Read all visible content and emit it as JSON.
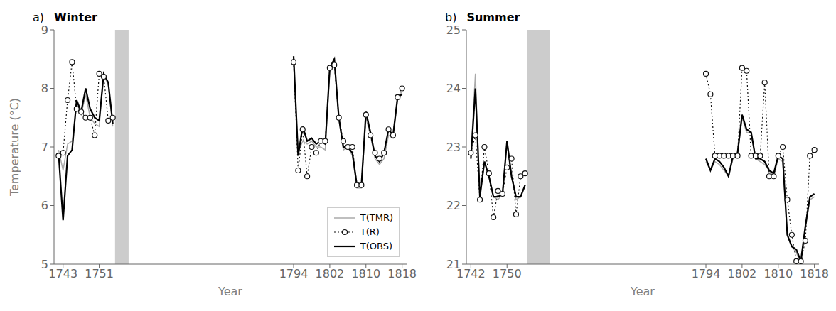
{
  "chart_data": [
    {
      "type": "line",
      "title": "Winter",
      "annotations": [
        "a)"
      ],
      "xlabel": "Year",
      "ylabel": "Temperature (°C)",
      "x": [
        1742,
        1743,
        1744,
        1745,
        1746,
        1747,
        1748,
        1749,
        1750,
        1751,
        1752,
        1753,
        1754,
        null,
        1794,
        1795,
        1796,
        1797,
        1798,
        1799,
        1800,
        1801,
        1802,
        1803,
        1804,
        1805,
        1806,
        1807,
        1808,
        1809,
        1810,
        1811,
        1812,
        1813,
        1814,
        1815,
        1816,
        1817,
        1818
      ],
      "series": [
        {
          "name": "T(TMR)",
          "color": "#aaaaaa",
          "line_style": "solid",
          "values": [
            6.95,
            6.6,
            7.05,
            7.1,
            7.7,
            7.55,
            7.9,
            7.5,
            7.4,
            7.35,
            8.25,
            8.05,
            7.35,
            null,
            8.4,
            6.9,
            7.1,
            7.05,
            7.1,
            7.0,
            7.0,
            6.95,
            8.3,
            8.45,
            7.5,
            6.95,
            7.0,
            6.85,
            6.3,
            6.3,
            7.5,
            7.2,
            6.8,
            6.7,
            6.8,
            7.2,
            7.15,
            7.8,
            7.95
          ]
        },
        {
          "name": "T(R)",
          "color": "#111111",
          "line_style": "dotted",
          "marker": "circle",
          "values": [
            6.85,
            6.9,
            7.8,
            8.45,
            7.65,
            7.6,
            7.5,
            7.5,
            7.2,
            8.25,
            8.2,
            7.45,
            7.5,
            null,
            8.45,
            6.6,
            7.3,
            6.5,
            7.0,
            6.9,
            7.1,
            7.1,
            8.35,
            8.4,
            7.5,
            7.1,
            7.0,
            7.0,
            6.35,
            6.35,
            7.55,
            7.2,
            6.9,
            6.8,
            6.9,
            7.3,
            7.2,
            7.85,
            8.0
          ]
        },
        {
          "name": "T(OBS)",
          "color": "#000000",
          "line_style": "solid",
          "values": [
            6.9,
            5.75,
            6.85,
            6.95,
            7.8,
            7.6,
            8.0,
            7.65,
            7.5,
            7.45,
            8.25,
            8.1,
            7.4,
            null,
            8.55,
            6.85,
            7.35,
            7.1,
            7.15,
            7.05,
            7.1,
            7.05,
            8.35,
            8.5,
            7.5,
            7.0,
            7.0,
            6.9,
            6.35,
            6.35,
            7.6,
            7.25,
            6.85,
            6.75,
            6.9,
            7.3,
            7.2,
            7.85,
            7.9
          ]
        }
      ],
      "shade": [
        1754.5,
        1757.5
      ],
      "shade_color": "#cccccc",
      "xlim": [
        1741,
        1819
      ],
      "ylim": [
        5,
        9
      ],
      "xticks": [
        1743,
        1751,
        1794,
        1802,
        1810,
        1818
      ],
      "yticks": [
        5,
        6,
        7,
        8,
        9
      ],
      "legend": "lower right"
    },
    {
      "type": "line",
      "title": "Summer",
      "annotations": [
        "b)"
      ],
      "xlabel": "Year",
      "x": [
        1742,
        1743,
        1744,
        1745,
        1746,
        1747,
        1748,
        1749,
        1750,
        1751,
        1752,
        1753,
        1754,
        null,
        1794,
        1795,
        1796,
        1797,
        1798,
        1799,
        1800,
        1801,
        1802,
        1803,
        1804,
        1805,
        1806,
        1807,
        1808,
        1809,
        1810,
        1811,
        1812,
        1813,
        1814,
        1815,
        1816,
        1817,
        1818
      ],
      "series": [
        {
          "name": "T(TMR)",
          "color": "#aaaaaa",
          "line_style": "solid",
          "values": [
            22.85,
            24.25,
            22.15,
            22.75,
            22.5,
            22.15,
            22.1,
            22.2,
            23.1,
            22.5,
            22.1,
            22.15,
            22.35,
            null,
            22.75,
            22.6,
            22.75,
            22.7,
            22.6,
            22.5,
            22.8,
            22.85,
            23.5,
            23.25,
            23.25,
            22.8,
            22.75,
            22.7,
            22.6,
            22.5,
            22.8,
            22.75,
            21.5,
            21.3,
            21.2,
            21.0,
            21.6,
            22.1,
            22.15
          ]
        },
        {
          "name": "T(R)",
          "color": "#111111",
          "line_style": "dotted",
          "marker": "circle",
          "values": [
            22.9,
            23.2,
            22.1,
            23.0,
            22.55,
            21.8,
            22.25,
            22.2,
            22.65,
            22.8,
            21.85,
            22.5,
            22.55,
            null,
            24.25,
            23.9,
            22.85,
            22.85,
            22.85,
            22.85,
            22.85,
            22.85,
            24.35,
            24.3,
            22.85,
            22.85,
            22.85,
            24.1,
            22.5,
            22.5,
            22.85,
            23.0,
            22.1,
            21.5,
            21.05,
            21.05,
            21.4,
            22.85,
            22.95
          ]
        },
        {
          "name": "T(OBS)",
          "color": "#000000",
          "line_style": "solid",
          "values": [
            22.8,
            24.0,
            22.15,
            22.75,
            22.5,
            22.15,
            22.15,
            22.2,
            23.1,
            22.5,
            22.15,
            22.15,
            22.35,
            null,
            22.8,
            22.6,
            22.8,
            22.75,
            22.65,
            22.5,
            22.85,
            22.9,
            23.55,
            23.3,
            23.25,
            22.8,
            22.8,
            22.75,
            22.6,
            22.55,
            22.85,
            22.8,
            21.5,
            21.3,
            21.25,
            21.05,
            21.65,
            22.15,
            22.2
          ]
        }
      ],
      "shade": [
        1754.5,
        1759.5
      ],
      "shade_color": "#cccccc",
      "xlim": [
        1741,
        1819
      ],
      "ylim": [
        21,
        25
      ],
      "xticks": [
        1742,
        1750,
        1794,
        1802,
        1810,
        1818
      ],
      "yticks": [
        21,
        22,
        23,
        24,
        25
      ]
    }
  ]
}
